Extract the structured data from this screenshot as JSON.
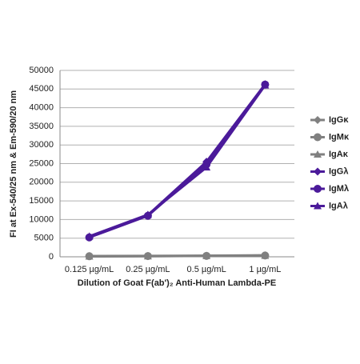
{
  "chart_data": {
    "type": "line",
    "x_label": "Dilution of Goat F(ab')₂ Anti-Human Lambda-PE",
    "y_label": "FI at Ex-540/25 nm & Em-590/20 nm",
    "categories": [
      "0.125 µg/mL",
      "0.25 µg/mL",
      "0.5 µg/mL",
      "1 µg/mL"
    ],
    "ylim": [
      0,
      50000
    ],
    "yticks": [
      0,
      5000,
      10000,
      15000,
      20000,
      25000,
      30000,
      35000,
      40000,
      45000,
      50000
    ],
    "grid": true,
    "legend": "right",
    "series": [
      {
        "name": "IgGκ",
        "color": "#808080",
        "marker": "diamond",
        "values": [
          200,
          250,
          300,
          400
        ]
      },
      {
        "name": "IgMκ",
        "color": "#808080",
        "marker": "circle",
        "values": [
          150,
          200,
          250,
          350
        ]
      },
      {
        "name": "IgAκ",
        "color": "#808080",
        "marker": "triangle",
        "values": [
          100,
          150,
          250,
          300
        ]
      },
      {
        "name": "IgGλ",
        "color": "#4b1a9a",
        "marker": "diamond",
        "values": [
          5300,
          11200,
          25500,
          46300
        ]
      },
      {
        "name": "IgMλ",
        "color": "#4b1a9a",
        "marker": "circle",
        "values": [
          5200,
          11000,
          24800,
          46200
        ]
      },
      {
        "name": "IgAλ",
        "color": "#4b1a9a",
        "marker": "triangle",
        "values": [
          5500,
          11300,
          24000,
          46000
        ]
      }
    ]
  }
}
